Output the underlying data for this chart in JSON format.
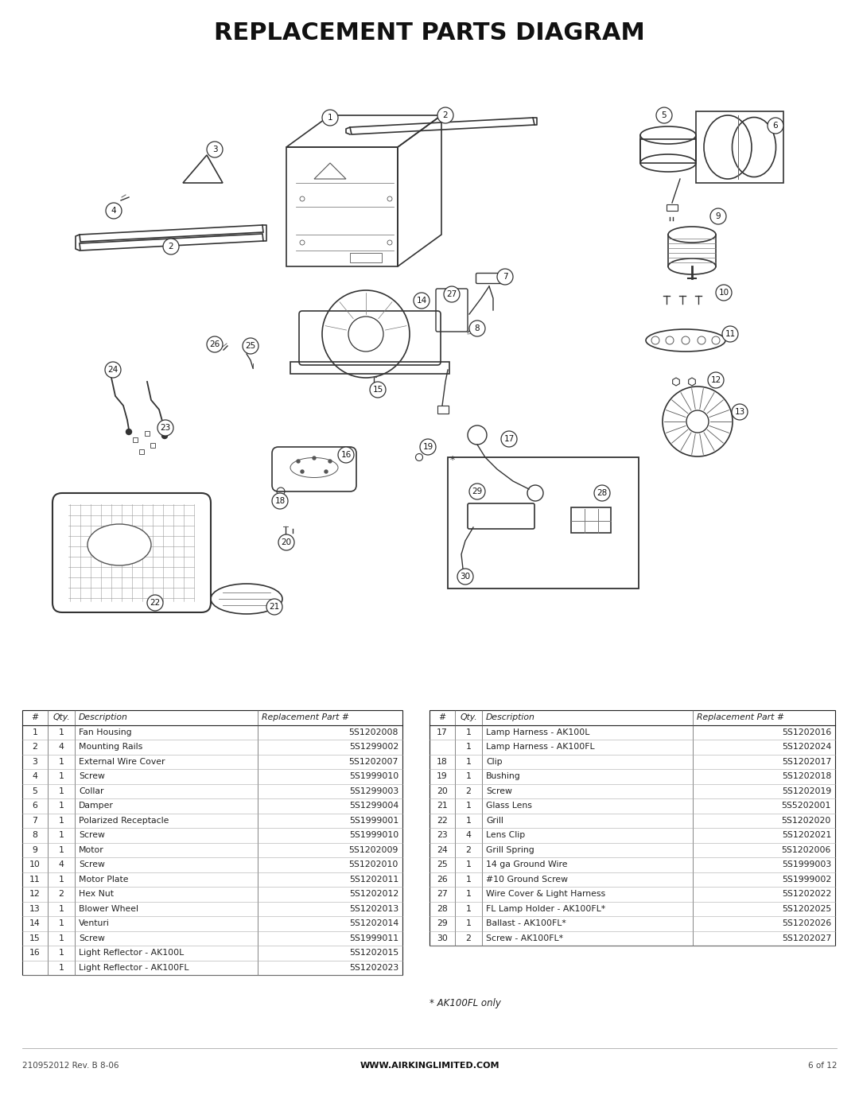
{
  "title": "REPLACEMENT PARTS DIAGRAM",
  "bg_color": "#ffffff",
  "title_fontsize": 22,
  "table1_headers": [
    "#",
    "Qty.",
    "Description",
    "Replacement Part #"
  ],
  "table1_rows": [
    [
      "1",
      "1",
      "Fan Housing",
      "5S1202008"
    ],
    [
      "2",
      "4",
      "Mounting Rails",
      "5S1299002"
    ],
    [
      "3",
      "1",
      "External Wire Cover",
      "5S1202007"
    ],
    [
      "4",
      "1",
      "Screw",
      "5S1999010"
    ],
    [
      "5",
      "1",
      "Collar",
      "5S1299003"
    ],
    [
      "6",
      "1",
      "Damper",
      "5S1299004"
    ],
    [
      "7",
      "1",
      "Polarized Receptacle",
      "5S1999001"
    ],
    [
      "8",
      "1",
      "Screw",
      "5S1999010"
    ],
    [
      "9",
      "1",
      "Motor",
      "5S1202009"
    ],
    [
      "10",
      "4",
      "Screw",
      "5S1202010"
    ],
    [
      "11",
      "1",
      "Motor Plate",
      "5S1202011"
    ],
    [
      "12",
      "2",
      "Hex Nut",
      "5S1202012"
    ],
    [
      "13",
      "1",
      "Blower Wheel",
      "5S1202013"
    ],
    [
      "14",
      "1",
      "Venturi",
      "5S1202014"
    ],
    [
      "15",
      "1",
      "Screw",
      "5S1999011"
    ],
    [
      "16",
      "1",
      "Light Reflector - AK100L",
      "5S1202015"
    ],
    [
      "",
      "1",
      "Light Reflector - AK100FL",
      "5S1202023"
    ]
  ],
  "table2_headers": [
    "#",
    "Qty.",
    "Description",
    "Replacement Part #"
  ],
  "table2_rows": [
    [
      "17",
      "1",
      "Lamp Harness - AK100L",
      "5S1202016"
    ],
    [
      "",
      "1",
      "Lamp Harness - AK100FL",
      "5S1202024"
    ],
    [
      "18",
      "1",
      "Clip",
      "5S1202017"
    ],
    [
      "19",
      "1",
      "Bushing",
      "5S1202018"
    ],
    [
      "20",
      "2",
      "Screw",
      "5S1202019"
    ],
    [
      "21",
      "1",
      "Glass Lens",
      "5S5202001"
    ],
    [
      "22",
      "1",
      "Grill",
      "5S1202020"
    ],
    [
      "23",
      "4",
      "Lens Clip",
      "5S1202021"
    ],
    [
      "24",
      "2",
      "Grill Spring",
      "5S1202006"
    ],
    [
      "25",
      "1",
      "14 ga Ground Wire",
      "5S1999003"
    ],
    [
      "26",
      "1",
      "#10 Ground Screw",
      "5S1999002"
    ],
    [
      "27",
      "1",
      "Wire Cover & Light Harness",
      "5S1202022"
    ],
    [
      "28",
      "1",
      "FL Lamp Holder - AK100FL*",
      "5S1202025"
    ],
    [
      "29",
      "1",
      "Ballast - AK100FL*",
      "5S1202026"
    ],
    [
      "30",
      "2",
      "Screw - AK100FL*",
      "5S1202027"
    ]
  ],
  "footnote": "* AK100FL only",
  "footer_left": "210952012 Rev. B 8-06",
  "footer_center": "WWW.AIRKINGLIMITED.COM",
  "footer_right": "6 of 12"
}
